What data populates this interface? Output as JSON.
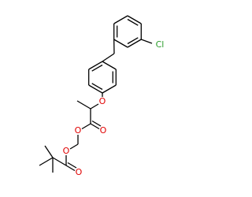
{
  "atoms": [
    {
      "label": "Cl"
    },
    {
      "label": "O"
    },
    {
      "label": "O"
    },
    {
      "label": "O"
    },
    {
      "label": "O"
    },
    {
      "label": "O"
    }
  ]
}
